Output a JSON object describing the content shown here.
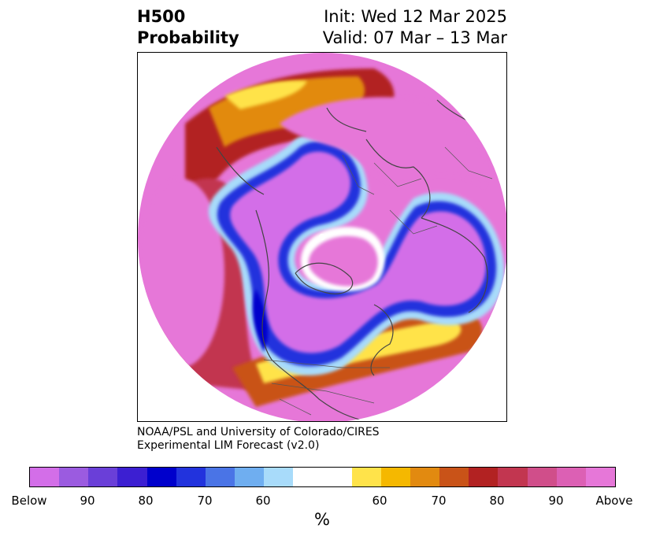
{
  "title": {
    "left_line1": "H500",
    "left_line2": "Probability",
    "right_line1": "Init: Wed 12 Mar 2025",
    "right_line2": "Valid: 07 Mar – 13 Mar"
  },
  "credit": {
    "line1": "NOAA/PSL and University of Colorado/CIRES",
    "line2": "Experimental LIM Forecast (v2.0)"
  },
  "colorbar": {
    "colors": [
      "#d36ee8",
      "#9b5be0",
      "#6a3fd8",
      "#3c1fd2",
      "#0000cc",
      "#2233dd",
      "#4a74e6",
      "#6faef0",
      "#a8dbfa",
      "#ffffff",
      "#ffe34a",
      "#f5b800",
      "#e28a10",
      "#c95318",
      "#b22222",
      "#c23650",
      "#d04e8a",
      "#dc60b4",
      "#e677d8"
    ],
    "tick_labels": [
      "Below",
      "90",
      "80",
      "70",
      "60",
      "60",
      "70",
      "80",
      "90",
      "Above"
    ],
    "unit_label": "%"
  },
  "map": {
    "projection": "north-polar-stereographic",
    "features": [
      "coastlines",
      "country-borders",
      "state-borders"
    ]
  }
}
